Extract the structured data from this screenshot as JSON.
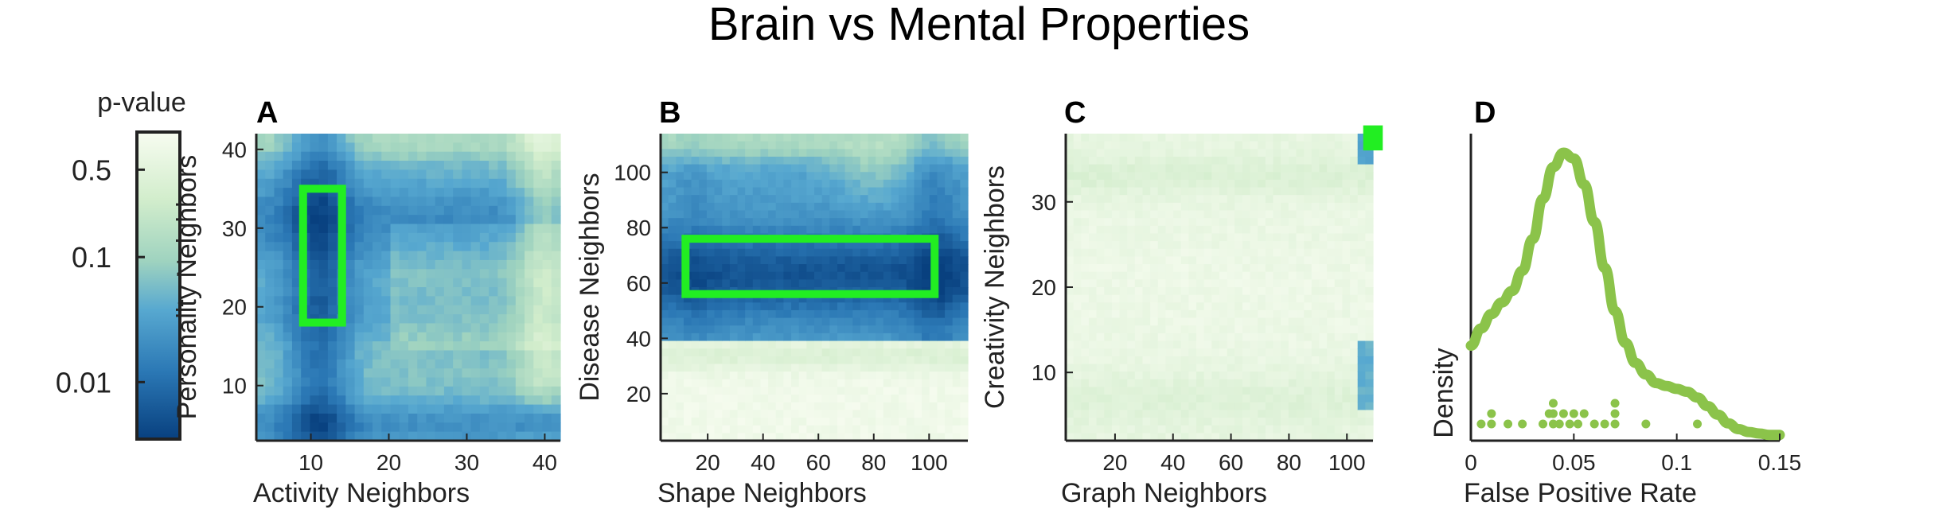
{
  "figure": {
    "title": "Brain vs Mental Properties",
    "colorbar": {
      "label": "p-value",
      "ticks": [
        "0.5",
        "0.1",
        "0.01"
      ],
      "tick_values": [
        0.5,
        0.1,
        0.01
      ],
      "scale": "log"
    }
  },
  "colors": {
    "highlight": "#22ee22",
    "density": "#8bc34a",
    "heat_low": "#08407f",
    "heat_mid": "#4f9fd0",
    "heat_high": "#f7fcf0"
  },
  "chart_data": [
    {
      "type": "heatmap",
      "panel": "A",
      "xlabel": "Activity Neighbors",
      "ylabel": "Personality Neighbors",
      "xlim": [
        3,
        42
      ],
      "ylim": [
        3,
        42
      ],
      "xticks": [
        10,
        20,
        30,
        40
      ],
      "yticks": [
        10,
        20,
        30,
        40
      ],
      "highlight": {
        "x": [
          9,
          14
        ],
        "y": [
          18,
          35
        ]
      }
    },
    {
      "type": "heatmap",
      "panel": "B",
      "xlabel": "Shape Neighbors",
      "ylabel": "Disease Neighbors",
      "xlim": [
        3,
        114
      ],
      "ylim": [
        3,
        114
      ],
      "xticks": [
        20,
        40,
        60,
        80,
        100
      ],
      "yticks": [
        20,
        40,
        60,
        80,
        100
      ],
      "highlight": {
        "x": [
          12,
          102
        ],
        "y": [
          56,
          76
        ]
      }
    },
    {
      "type": "heatmap",
      "panel": "C",
      "xlabel": "Graph Neighbors",
      "ylabel": "Creativity Neighbors",
      "xlim": [
        3,
        109
      ],
      "ylim": [
        2,
        38
      ],
      "xticks": [
        20,
        40,
        60,
        80,
        100
      ],
      "yticks": [
        10,
        20,
        30
      ],
      "highlight": {
        "x": [
          107,
          111
        ],
        "y": [
          36.5,
          38.5
        ]
      }
    },
    {
      "type": "line",
      "panel": "D",
      "xlabel": "False Positive Rate",
      "ylabel": "Density",
      "xlim": [
        0,
        0.15
      ],
      "ylim": [
        0,
        1
      ],
      "xticks": [
        0,
        0.05,
        0.1,
        0.15
      ],
      "xtick_labels": [
        "0",
        "0.05",
        "0.1",
        "0.15"
      ],
      "density_curve": {
        "x": [
          0,
          0.005,
          0.01,
          0.015,
          0.02,
          0.025,
          0.03,
          0.035,
          0.04,
          0.045,
          0.05,
          0.055,
          0.06,
          0.065,
          0.07,
          0.075,
          0.08,
          0.085,
          0.09,
          0.095,
          0.1,
          0.105,
          0.11,
          0.115,
          0.12,
          0.125,
          0.13,
          0.135,
          0.14,
          0.145,
          0.15
        ],
        "y": [
          0.33,
          0.39,
          0.44,
          0.48,
          0.52,
          0.59,
          0.7,
          0.84,
          0.95,
          1.0,
          0.98,
          0.89,
          0.76,
          0.6,
          0.45,
          0.34,
          0.27,
          0.23,
          0.2,
          0.19,
          0.18,
          0.17,
          0.15,
          0.12,
          0.09,
          0.06,
          0.04,
          0.03,
          0.025,
          0.02,
          0.02
        ]
      },
      "points": {
        "x": [
          0.005,
          0.01,
          0.01,
          0.018,
          0.025,
          0.035,
          0.038,
          0.04,
          0.04,
          0.04,
          0.043,
          0.045,
          0.048,
          0.05,
          0.052,
          0.055,
          0.06,
          0.065,
          0.07,
          0.07,
          0.07,
          0.085,
          0.11
        ],
        "level": [
          0,
          0,
          1,
          0,
          0,
          0,
          1,
          0,
          1,
          2,
          0,
          1,
          0,
          1,
          0,
          1,
          0,
          0,
          0,
          1,
          2,
          0,
          0
        ]
      }
    }
  ]
}
